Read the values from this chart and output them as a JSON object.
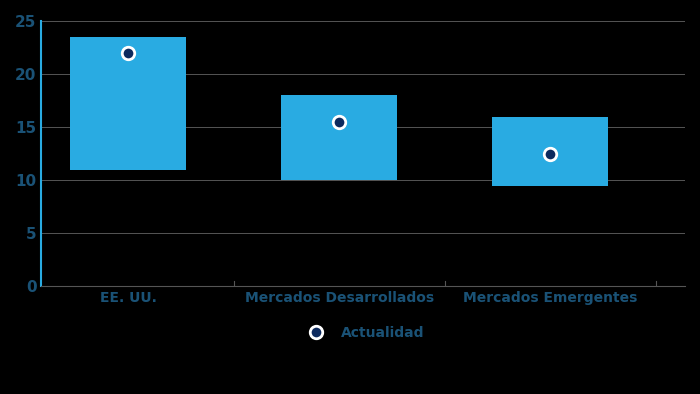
{
  "categories": [
    "EE. UU.",
    "Mercados Desarrollados",
    "Mercados Emergentes"
  ],
  "bar_bottoms": [
    11.0,
    10.0,
    9.5
  ],
  "bar_tops": [
    23.5,
    18.0,
    16.0
  ],
  "dot_values": [
    22.0,
    15.5,
    12.5
  ],
  "bar_color": "#29ABE2",
  "dot_face_color": "#0d2a5e",
  "dot_edge_color": "#ffffff",
  "background_color": "#000000",
  "text_color": "#1a5276",
  "grid_color": "#555555",
  "spine_color": "#29ABE2",
  "ylim": [
    0,
    25
  ],
  "yticks": [
    0,
    5,
    10,
    15,
    20,
    25
  ],
  "bar_width": 0.55,
  "legend_label": "Actualidad",
  "tick_fontsize": 11,
  "xlabel_fontsize": 10
}
